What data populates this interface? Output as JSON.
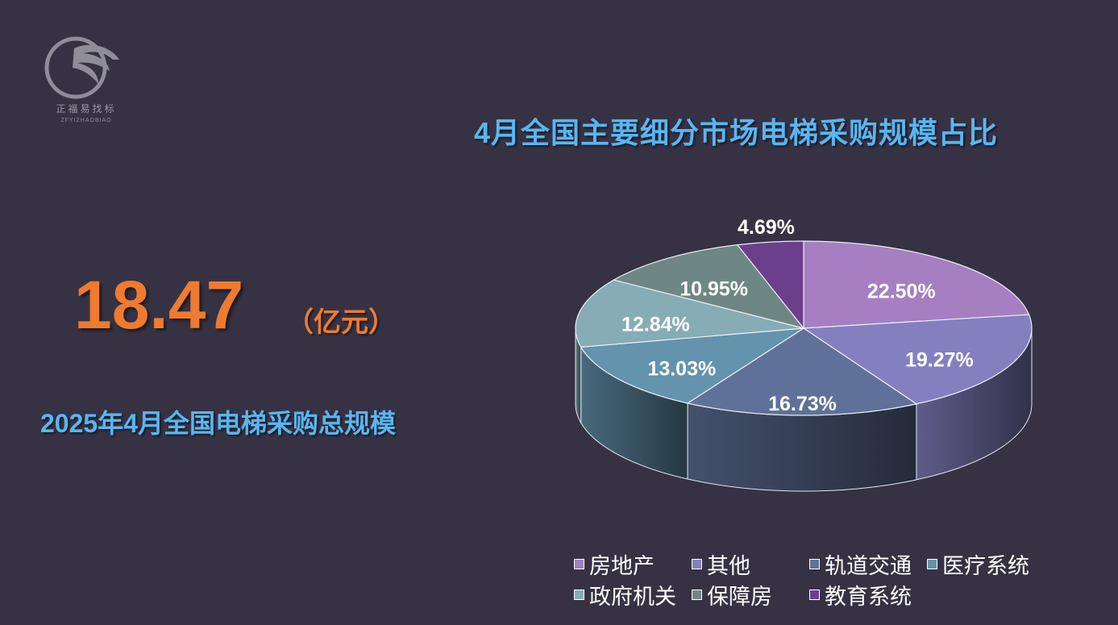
{
  "logo": {
    "text_cn": "正福易找标",
    "text_en": "ZFYIZHAOBIAO",
    "icon": "eagle-logo-icon"
  },
  "headline": {
    "value": "18.47",
    "unit": "（亿元）",
    "caption": "2025年4月全国电梯采购总规模"
  },
  "chart_data": {
    "type": "pie",
    "title": "4月全国主要细分市场电梯采购规模占比",
    "slices": [
      {
        "name": "房地产",
        "value": 22.5,
        "label": "22.50%",
        "color": "#a57fc2"
      },
      {
        "name": "其他",
        "value": 19.27,
        "label": "19.27%",
        "color": "#8480c0"
      },
      {
        "name": "轨道交通",
        "value": 16.73,
        "label": "16.73%",
        "color": "#5f7198"
      },
      {
        "name": "医疗系统",
        "value": 13.03,
        "label": "13.03%",
        "color": "#6393ad"
      },
      {
        "name": "政府机关",
        "value": 12.84,
        "label": "12.84%",
        "color": "#86acb6"
      },
      {
        "name": "保障房",
        "value": 10.95,
        "label": "10.95%",
        "color": "#6f8784"
      },
      {
        "name": "教育系统",
        "value": 4.69,
        "label": "4.69%",
        "color": "#6b3f8c"
      }
    ],
    "legend_position": "bottom",
    "units": "%"
  }
}
